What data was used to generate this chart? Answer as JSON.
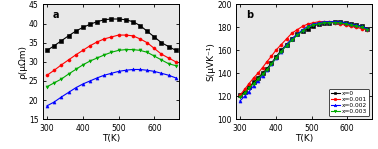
{
  "panel_a": {
    "T": [
      300,
      320,
      340,
      360,
      380,
      400,
      420,
      440,
      460,
      480,
      500,
      520,
      540,
      560,
      580,
      600,
      620,
      640,
      660
    ],
    "rho_x0": [
      33.0,
      34.2,
      35.5,
      36.8,
      38.0,
      39.0,
      39.8,
      40.5,
      41.0,
      41.2,
      41.2,
      41.0,
      40.5,
      39.5,
      38.0,
      36.5,
      35.0,
      34.0,
      33.0
    ],
    "rho_x001": [
      26.5,
      27.8,
      29.2,
      30.5,
      31.8,
      33.0,
      34.2,
      35.2,
      36.0,
      36.5,
      37.0,
      37.0,
      36.8,
      36.0,
      35.0,
      33.5,
      32.0,
      31.0,
      30.0
    ],
    "rho_x002": [
      23.5,
      24.5,
      25.5,
      26.8,
      28.0,
      29.2,
      30.2,
      31.0,
      31.8,
      32.5,
      33.0,
      33.2,
      33.2,
      33.0,
      32.5,
      31.5,
      30.5,
      29.5,
      29.0
    ],
    "rho_x003": [
      18.5,
      19.5,
      20.8,
      22.0,
      23.2,
      24.2,
      25.0,
      25.8,
      26.5,
      27.0,
      27.5,
      27.8,
      28.0,
      28.0,
      27.8,
      27.5,
      27.0,
      26.5,
      25.8
    ],
    "colors": [
      "black",
      "red",
      "#00aa00",
      "blue"
    ],
    "markers": [
      "s",
      "o",
      "v",
      "^"
    ],
    "ylabel": "ρ(μΩm)",
    "xlabel": "T(K)",
    "label": "a",
    "ylim": [
      15,
      45
    ],
    "xlim": [
      290,
      670
    ],
    "yticks": [
      15,
      20,
      25,
      30,
      35,
      40,
      45
    ],
    "xticks": [
      300,
      400,
      500,
      600
    ]
  },
  "panel_b": {
    "T": [
      300,
      313,
      325,
      338,
      350,
      363,
      375,
      388,
      400,
      415,
      430,
      445,
      460,
      475,
      490,
      505,
      520,
      535,
      550,
      565,
      580,
      595,
      610,
      625,
      640,
      655
    ],
    "S_x0": [
      121,
      124,
      128,
      132,
      136,
      140,
      144,
      149,
      154,
      160,
      165,
      170,
      174,
      177,
      179,
      181,
      183,
      184,
      184,
      185,
      185,
      184,
      183,
      182,
      181,
      179
    ],
    "S_x001": [
      121,
      126,
      131,
      136,
      140,
      145,
      150,
      155,
      160,
      165,
      170,
      175,
      178,
      181,
      183,
      184,
      185,
      185,
      185,
      184,
      183,
      182,
      181,
      180,
      179,
      178
    ],
    "S_x002": [
      116,
      120,
      124,
      129,
      133,
      138,
      143,
      148,
      153,
      159,
      165,
      170,
      174,
      178,
      181,
      183,
      184,
      185,
      185,
      185,
      185,
      184,
      183,
      182,
      181,
      179
    ],
    "S_x003": [
      119,
      123,
      127,
      131,
      135,
      139,
      143,
      148,
      153,
      159,
      164,
      169,
      173,
      177,
      180,
      182,
      183,
      184,
      184,
      184,
      184,
      183,
      182,
      181,
      180,
      178
    ],
    "colors": [
      "black",
      "red",
      "blue",
      "#00aa00"
    ],
    "markers": [
      "s",
      "o",
      "^",
      "v"
    ],
    "ylabel": "S(μVK⁻¹)",
    "xlabel": "T(K)",
    "label": "b",
    "ylim": [
      100,
      200
    ],
    "xlim": [
      290,
      670
    ],
    "yticks": [
      100,
      120,
      140,
      160,
      180,
      200
    ],
    "xticks": [
      300,
      400,
      500,
      600
    ],
    "legend_labels": [
      "x=0",
      "x=0.001",
      "x=0.002",
      "x=0.003"
    ]
  },
  "bg_color": "#e8e8e8",
  "fig_bg": "#ffffff"
}
